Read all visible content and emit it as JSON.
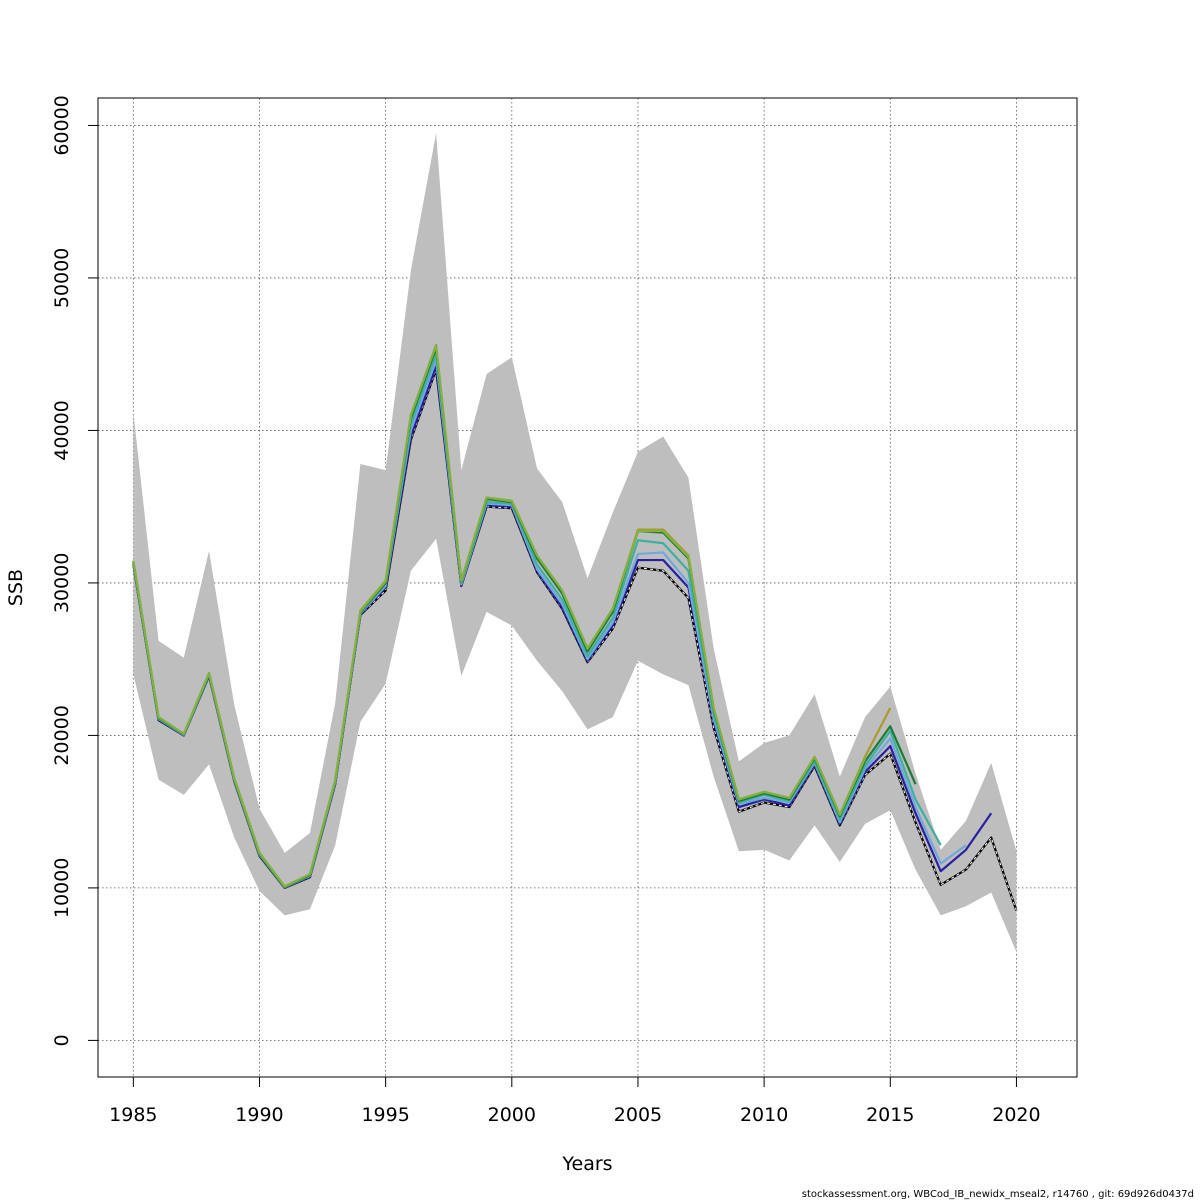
{
  "chart_data": {
    "type": "line",
    "title": "",
    "xlabel": "Years",
    "ylabel": "SSB",
    "xlim": [
      1983.6,
      2022.4
    ],
    "ylim": [
      -2400,
      61800
    ],
    "x_ticks": [
      1985,
      1990,
      1995,
      2000,
      2005,
      2010,
      2015,
      2020
    ],
    "y_ticks": [
      0,
      10000,
      20000,
      30000,
      40000,
      50000,
      60000
    ],
    "x_tick_labels": [
      "1985",
      "1990",
      "1995",
      "2000",
      "2005",
      "2010",
      "2015",
      "2020"
    ],
    "y_tick_labels": [
      "0",
      "10000",
      "20000",
      "30000",
      "40000",
      "50000",
      "60000"
    ],
    "grid": true,
    "confidence_band": {
      "color": "#bebebe",
      "x": [
        1985,
        1986,
        1987,
        1988,
        1989,
        1990,
        1991,
        1992,
        1993,
        1994,
        1995,
        1996,
        1997,
        1998,
        1999,
        2000,
        2001,
        2002,
        2003,
        2004,
        2005,
        2006,
        2007,
        2008,
        2009,
        2010,
        2011,
        2012,
        2013,
        2014,
        2015,
        2016,
        2017,
        2018,
        2019,
        2020
      ],
      "upper": [
        41200,
        26200,
        25100,
        32100,
        22000,
        15200,
        12300,
        13600,
        22100,
        37800,
        37400,
        50500,
        59500,
        37400,
        43700,
        44800,
        37500,
        35300,
        30300,
        34600,
        38600,
        39600,
        36900,
        25700,
        18300,
        19500,
        20000,
        22700,
        17300,
        21200,
        23200,
        17500,
        12500,
        14400,
        18200,
        12400
      ],
      "lower": [
        24000,
        17100,
        16100,
        18100,
        13300,
        9800,
        8200,
        8600,
        12800,
        20900,
        23400,
        30800,
        32900,
        23900,
        28100,
        27200,
        24900,
        22900,
        20400,
        21200,
        24900,
        24000,
        23300,
        17300,
        12400,
        12500,
        11800,
        14100,
        11700,
        14200,
        15100,
        11200,
        8200,
        8800,
        9700,
        5800
      ]
    },
    "series": [
      {
        "color": "#000000",
        "dashed_overlay": true,
        "x": [
          1985,
          1986,
          1987,
          1988,
          1989,
          1990,
          1991,
          1992,
          1993,
          1994,
          1995,
          1996,
          1997,
          1998,
          1999,
          2000,
          2001,
          2002,
          2003,
          2004,
          2005,
          2006,
          2007,
          2008,
          2009,
          2010,
          2011,
          2012,
          2013,
          2014,
          2015,
          2016,
          2017,
          2018,
          2019,
          2020
        ],
        "values": [
          31200,
          21000,
          20000,
          23900,
          17000,
          12100,
          10000,
          10700,
          16800,
          27900,
          29500,
          39400,
          44000,
          29800,
          35000,
          34900,
          30700,
          28300,
          24800,
          27000,
          31000,
          30800,
          29000,
          20500,
          15000,
          15600,
          15300,
          18000,
          14100,
          17400,
          18800,
          14300,
          10200,
          11200,
          13300,
          8500
        ]
      },
      {
        "color": "#2a1fa0",
        "x": [
          1985,
          1986,
          1987,
          1988,
          1989,
          1990,
          1991,
          1992,
          1993,
          1994,
          1995,
          1996,
          1997,
          1998,
          1999,
          2000,
          2001,
          2002,
          2003,
          2004,
          2005,
          2006,
          2007,
          2008,
          2009,
          2010,
          2011,
          2012,
          2013,
          2014,
          2015,
          2016,
          2017,
          2018,
          2019
        ],
        "values": [
          31250,
          21050,
          20000,
          23950,
          17050,
          12150,
          10020,
          10750,
          16850,
          27950,
          29700,
          39600,
          44200,
          29850,
          35100,
          35000,
          30800,
          28400,
          24900,
          27200,
          31500,
          31500,
          29700,
          20900,
          15300,
          15800,
          15400,
          18100,
          14200,
          17600,
          19300,
          14900,
          11100,
          12500,
          14900
        ]
      },
      {
        "color": "#6fa8dc",
        "x": [
          1985,
          1986,
          1987,
          1988,
          1989,
          1990,
          1991,
          1992,
          1993,
          1994,
          1995,
          1996,
          1997,
          1998,
          1999,
          2000,
          2001,
          2002,
          2003,
          2004,
          2005,
          2006,
          2007,
          2008,
          2009,
          2010,
          2011,
          2012,
          2013,
          2014,
          2015,
          2016,
          2017,
          2018
        ],
        "values": [
          31300,
          21080,
          20030,
          23980,
          17080,
          12180,
          10040,
          10780,
          16900,
          28000,
          29800,
          40000,
          44600,
          29900,
          35200,
          35100,
          30900,
          28600,
          25000,
          27400,
          31900,
          32000,
          30000,
          21100,
          15500,
          15900,
          15600,
          18200,
          14300,
          17800,
          19800,
          15300,
          11600,
          12800
        ]
      },
      {
        "color": "#3fb0a0",
        "x": [
          1985,
          1986,
          1987,
          1988,
          1989,
          1990,
          1991,
          1992,
          1993,
          1994,
          1995,
          1996,
          1997,
          1998,
          1999,
          2000,
          2001,
          2002,
          2003,
          2004,
          2005,
          2006,
          2007,
          2008,
          2009,
          2010,
          2011,
          2012,
          2013,
          2014,
          2015,
          2016,
          2017
        ],
        "values": [
          31350,
          21100,
          20050,
          24000,
          17100,
          12200,
          10050,
          10800,
          16950,
          28050,
          29900,
          40400,
          45000,
          30000,
          35300,
          35200,
          31200,
          28900,
          25200,
          27700,
          32800,
          32600,
          30800,
          21400,
          15600,
          16100,
          15700,
          18300,
          14500,
          18000,
          20300,
          15800,
          12800
        ]
      },
      {
        "color": "#1e7b34",
        "x": [
          1985,
          1986,
          1987,
          1988,
          1989,
          1990,
          1991,
          1992,
          1993,
          1994,
          1995,
          1996,
          1997,
          1998,
          1999,
          2000,
          2001,
          2002,
          2003,
          2004,
          2005,
          2006,
          2007,
          2008,
          2009,
          2010,
          2011,
          2012,
          2013,
          2014,
          2015,
          2016
        ],
        "values": [
          31400,
          21150,
          20080,
          24050,
          17150,
          12250,
          10070,
          10850,
          17000,
          28100,
          30000,
          40800,
          45400,
          30100,
          35500,
          35300,
          31600,
          29300,
          25500,
          28100,
          33400,
          33300,
          31600,
          21700,
          15700,
          16200,
          15800,
          18500,
          14700,
          18300,
          20600,
          16800
        ]
      },
      {
        "color": "#a89a2c",
        "x": [
          1985,
          1986,
          1987,
          1988,
          1989,
          1990,
          1991,
          1992,
          1993,
          1994,
          1995,
          1996,
          1997,
          1998,
          1999,
          2000,
          2001,
          2002,
          2003,
          2004,
          2005,
          2006,
          2007,
          2008,
          2009,
          2010,
          2011,
          2012,
          2013,
          2014,
          2015
        ],
        "values": [
          31450,
          21200,
          20100,
          24100,
          17200,
          12300,
          10090,
          10900,
          17050,
          28150,
          30100,
          41000,
          45600,
          30150,
          35600,
          35350,
          31800,
          29500,
          25700,
          28300,
          33500,
          33500,
          31800,
          21800,
          15800,
          16300,
          15900,
          18600,
          14800,
          18600,
          21800
        ]
      },
      {
        "color": "#7fb241",
        "x": [
          1985,
          1986,
          1987,
          1988,
          1989,
          1990,
          1991,
          1992,
          1993,
          1994,
          1995,
          1996,
          1997,
          1998,
          1999,
          2000,
          2001,
          2002,
          2003,
          2004,
          2005,
          2006,
          2007,
          2008,
          2009,
          2010,
          2011,
          2012,
          2013,
          2014
        ],
        "values": [
          31450,
          21200,
          20100,
          24100,
          17200,
          12300,
          10100,
          10900,
          17050,
          28200,
          30150,
          41000,
          45600,
          30150,
          35600,
          35400,
          31800,
          29500,
          25700,
          28300,
          33400,
          33400,
          31700,
          21800,
          15800,
          16300,
          15900,
          18600,
          14800,
          18500
        ]
      }
    ],
    "footer": "stockassessment.org, WBCod_IB_newidx_mseal2, r14760 , git: 69d926d0437d"
  }
}
